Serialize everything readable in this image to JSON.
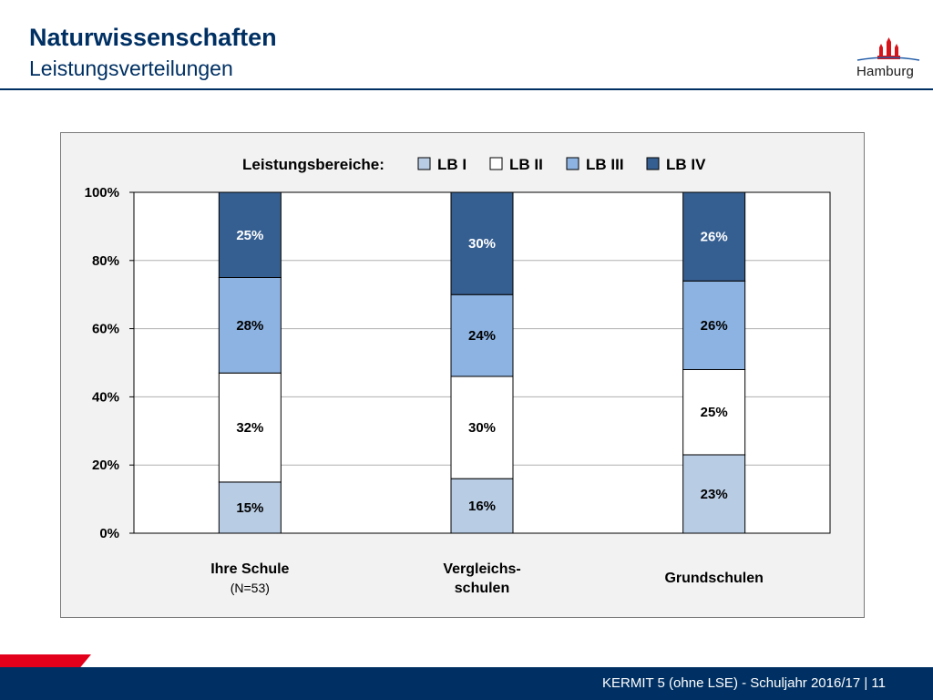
{
  "header": {
    "title": "Naturwissenschaften",
    "subtitle": "Leistungsverteilungen"
  },
  "logo": {
    "text": "Hamburg",
    "icon": "hamburg-castle-icon",
    "color": "#d7141a"
  },
  "footer": {
    "text": "KERMIT 5 (ohne LSE) - Schuljahr 2016/17 | 11",
    "bar_color": "#003063",
    "accent_color": "#e3001b"
  },
  "chart_data": {
    "type": "bar",
    "stacked": true,
    "legend_title": "Leistungsbereiche:",
    "legend_position": "top",
    "categories": [
      [
        "Ihre Schule",
        "(N=53)"
      ],
      [
        "Vergleichs-",
        "schulen"
      ],
      [
        "Grundschulen"
      ]
    ],
    "series": [
      {
        "name": "LB I",
        "color": "#b8cce4",
        "values": [
          15,
          16,
          23
        ]
      },
      {
        "name": "LB II",
        "color": "#ffffff",
        "values": [
          32,
          30,
          25
        ]
      },
      {
        "name": "LB III",
        "color": "#8db3e2",
        "values": [
          28,
          24,
          26
        ]
      },
      {
        "name": "LB IV",
        "color": "#365f91",
        "values": [
          25,
          30,
          26
        ]
      }
    ],
    "data_labels": [
      [
        "15%",
        "16%",
        "23%"
      ],
      [
        "32%",
        "30%",
        "25%"
      ],
      [
        "28%",
        "24%",
        "26%"
      ],
      [
        "25%",
        "30%",
        "26%"
      ]
    ],
    "y_ticks": [
      "0%",
      "20%",
      "40%",
      "60%",
      "80%",
      "100%"
    ],
    "ylim": [
      0,
      100
    ],
    "grid": true
  }
}
